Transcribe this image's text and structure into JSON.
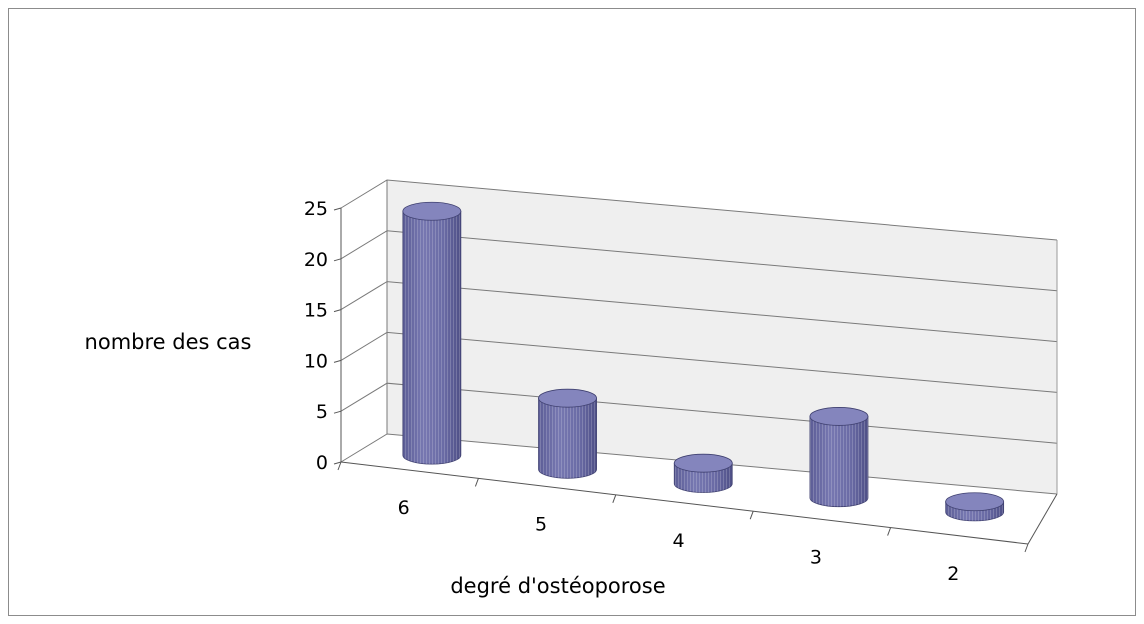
{
  "chart_data": {
    "type": "bar",
    "style": "3d-cylinder",
    "title": "",
    "xlabel": "degré d'ostéoporose",
    "ylabel": "nombre des cas",
    "categories": [
      "6",
      "5",
      "4",
      "3",
      "2"
    ],
    "values": [
      24,
      7,
      2,
      8,
      1
    ],
    "ylim": [
      0,
      25
    ],
    "yticks": [
      0,
      5,
      10,
      15,
      20,
      25
    ],
    "grid": true,
    "legend": "none",
    "bar_color": "#6f70aa",
    "bar_top_color": "#8485bd"
  }
}
